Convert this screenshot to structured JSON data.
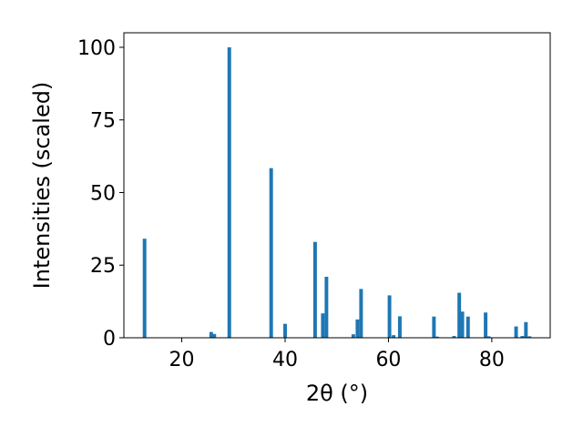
{
  "chart_data": {
    "type": "bar",
    "xlabel": "2θ (°)",
    "ylabel": "Intensities (scaled)",
    "xlim": [
      8.8,
      91.3
    ],
    "ylim": [
      0,
      105
    ],
    "xticks": [
      20,
      40,
      60,
      80
    ],
    "yticks": [
      0,
      25,
      50,
      75,
      100
    ],
    "bar_width": 0.7,
    "bar_color": "#1f77b4",
    "grid": false,
    "x": [
      12.8,
      25.7,
      26.3,
      29.2,
      37.3,
      40.0,
      45.8,
      47.3,
      48.0,
      53.2,
      54.0,
      54.7,
      60.2,
      61.0,
      62.2,
      68.8,
      69.4,
      72.7,
      73.7,
      74.3,
      75.4,
      78.8,
      79.4,
      84.7,
      85.9,
      86.6,
      87.3
    ],
    "values": [
      34.1,
      2.0,
      1.3,
      100.0,
      58.4,
      4.8,
      33.0,
      8.4,
      21.0,
      1.2,
      6.3,
      16.8,
      14.6,
      0.9,
      7.4,
      7.3,
      0.4,
      0.6,
      15.5,
      9.0,
      7.3,
      8.7,
      0.5,
      3.9,
      0.6,
      5.4,
      0.5
    ]
  }
}
